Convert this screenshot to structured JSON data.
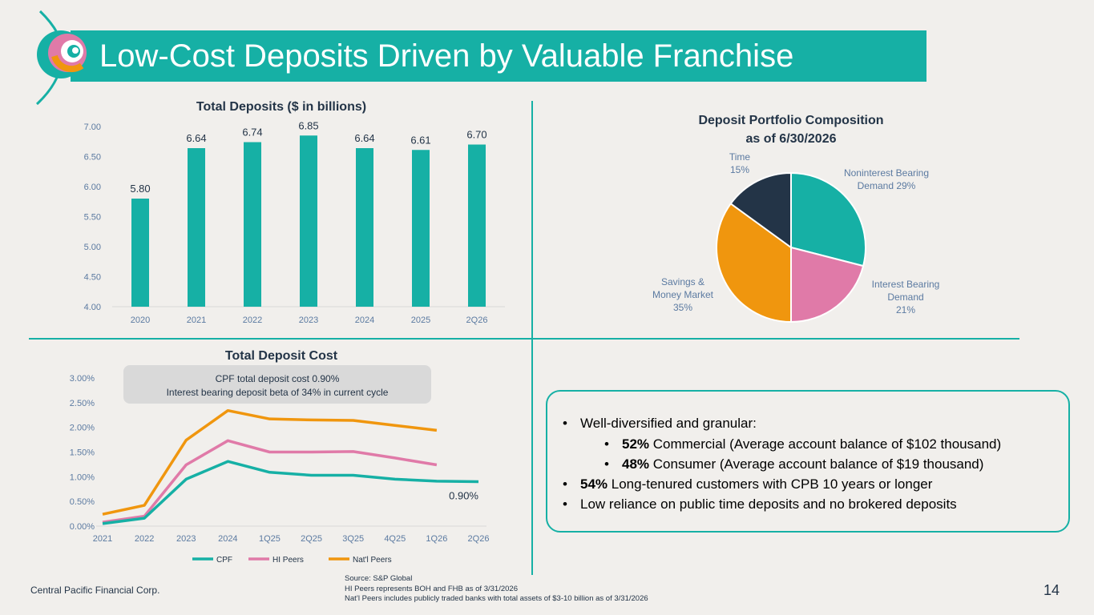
{
  "title": "Low-Cost Deposits Driven by Valuable Franchise",
  "colors": {
    "teal": "#16b0a5",
    "pink": "#e07aa8",
    "orange": "#f0960e",
    "navy": "#233447",
    "grid": "#d9d9d9",
    "axis_text": "#5b7aa1"
  },
  "chart_data": [
    {
      "type": "bar",
      "title": "Total Deposits ($ in billions)",
      "categories": [
        "2020",
        "2021",
        "2022",
        "2023",
        "2024",
        "2025",
        "2Q26"
      ],
      "values": [
        5.8,
        6.64,
        6.74,
        6.85,
        6.64,
        6.61,
        6.7
      ],
      "value_labels": [
        "5.80",
        "6.64",
        "6.74",
        "6.85",
        "6.64",
        "6.61",
        "6.70"
      ],
      "ylim": [
        4.0,
        7.0
      ],
      "yticks": [
        "4.00",
        "4.50",
        "5.00",
        "5.50",
        "6.00",
        "6.50",
        "7.00"
      ],
      "grid": false
    },
    {
      "type": "pie",
      "title_lines": [
        "Deposit Portfolio Composition",
        "as of 6/30/2026"
      ],
      "slices": [
        {
          "label_lines": [
            "Noninterest Bearing",
            "Demand 29%"
          ],
          "value": 29,
          "color": "#16b0a5"
        },
        {
          "label_lines": [
            "Interest Bearing",
            "Demand",
            "21%"
          ],
          "value": 21,
          "color": "#e07aa8"
        },
        {
          "label_lines": [
            "Savings &",
            "Money Market",
            "35%"
          ],
          "value": 35,
          "color": "#f0960e"
        },
        {
          "label_lines": [
            "Time",
            "15%"
          ],
          "value": 15,
          "color": "#233447"
        }
      ]
    },
    {
      "type": "line",
      "title": "Total Deposit Cost",
      "x": [
        "2021",
        "2022",
        "2023",
        "2024",
        "1Q25",
        "2Q25",
        "3Q25",
        "4Q25",
        "1Q26",
        "2Q26"
      ],
      "ylim": [
        0,
        3.0
      ],
      "yticks": [
        "0.00%",
        "0.50%",
        "1.00%",
        "1.50%",
        "2.00%",
        "2.50%",
        "3.00%"
      ],
      "series": [
        {
          "name": "CPF",
          "color": "#16b0a5",
          "values": [
            0.05,
            0.16,
            0.95,
            1.31,
            1.09,
            1.03,
            1.03,
            0.95,
            0.91,
            0.9
          ]
        },
        {
          "name": "HI Peers",
          "color": "#e07aa8",
          "values": [
            0.08,
            0.2,
            1.24,
            1.73,
            1.5,
            1.5,
            1.51,
            1.38,
            1.24,
            null
          ]
        },
        {
          "name": "Nat'l Peers",
          "color": "#f0960e",
          "values": [
            0.24,
            0.42,
            1.74,
            2.34,
            2.17,
            2.15,
            2.14,
            2.04,
            1.94,
            null
          ]
        }
      ],
      "end_label": "0.90%",
      "callout_lines": [
        "CPF total deposit cost 0.90%",
        "Interest bearing deposit beta of 34% in current cycle"
      ]
    }
  ],
  "bullets": [
    {
      "level": 1,
      "bold": "",
      "text": "Well-diversified and granular:"
    },
    {
      "level": 2,
      "bold": "52%",
      "text": " Commercial (Average account balance of $102 thousand)"
    },
    {
      "level": 2,
      "bold": "48%",
      "text": " Consumer (Average account balance of $19 thousand)"
    },
    {
      "level": 1,
      "bold": "54%",
      "text": " Long-tenured customers with CPB 10 years or longer"
    },
    {
      "level": 1,
      "bold": "",
      "text": "Low reliance on public time deposits and no brokered deposits"
    }
  ],
  "footer": {
    "company": "Central Pacific Financial Corp.",
    "source_lines": [
      "Source: S&P Global",
      "HI Peers represents BOH and FHB as of 3/31/2026",
      "Nat’l Peers includes publicly traded banks with total assets of $3-10 billion as of 3/31/2026"
    ],
    "page_number": "14"
  }
}
